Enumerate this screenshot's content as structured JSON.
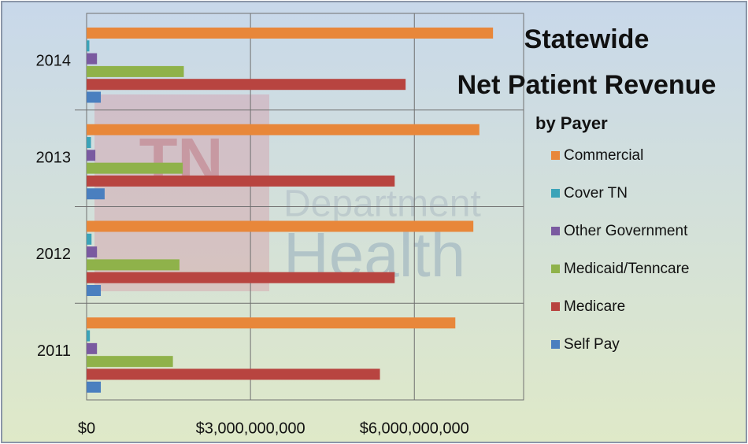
{
  "chart_data": {
    "type": "hbar",
    "title_lines": [
      "Statewide",
      "Net Patient Revenue"
    ],
    "subtitle": "by Payer",
    "watermark": [
      "TN",
      "Department",
      "Health"
    ],
    "categories": [
      "2011",
      "2012",
      "2013",
      "2014"
    ],
    "series": [
      {
        "name": "Commercial",
        "color": "#e8873a",
        "values": [
          6750000000,
          7080000000,
          7190000000,
          7440000000
        ]
      },
      {
        "name": "Cover TN",
        "color": "#3ba3b8",
        "values": [
          60000000,
          90000000,
          80000000,
          50000000
        ]
      },
      {
        "name": "Other Government",
        "color": "#7a5aa0",
        "values": [
          190000000,
          190000000,
          160000000,
          190000000
        ]
      },
      {
        "name": "Medicaid/Tenncare",
        "color": "#8fb24a",
        "values": [
          1580000000,
          1700000000,
          1760000000,
          1780000000
        ]
      },
      {
        "name": "Medicare",
        "color": "#b84440",
        "values": [
          5370000000,
          5640000000,
          5640000000,
          5840000000
        ]
      },
      {
        "name": "Self Pay",
        "color": "#4a7fbf",
        "values": [
          260000000,
          260000000,
          330000000,
          260000000
        ]
      }
    ],
    "xlim": [
      0,
      8000000000
    ],
    "xticks": [
      {
        "value": 0,
        "label": "$0"
      },
      {
        "value": 3000000000,
        "label": "$3,000,000,000"
      },
      {
        "value": 6000000000,
        "label": "$6,000,000,000"
      }
    ],
    "grid": true,
    "legend": "right"
  }
}
